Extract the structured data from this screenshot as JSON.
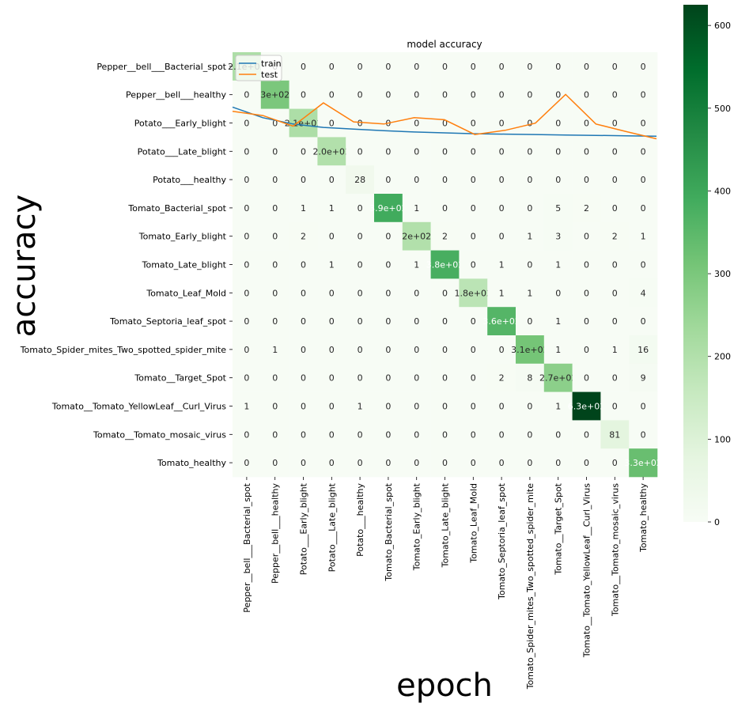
{
  "chart_data": [
    {
      "type": "heatmap",
      "title": "",
      "xlabel": "",
      "ylabel": "",
      "categories": [
        "Pepper__bell___Bacterial_spot",
        "Pepper__bell___healthy",
        "Potato___Early_blight",
        "Potato___Late_blight",
        "Potato___healthy",
        "Tomato_Bacterial_spot",
        "Tomato_Early_blight",
        "Tomato_Late_blight",
        "Tomato_Leaf_Mold",
        "Tomato_Septoria_leaf_spot",
        "Tomato_Spider_mites_Two_spotted_spider_mite",
        "Tomato__Target_Spot",
        "Tomato__Tomato_YellowLeaf__Curl_Virus",
        "Tomato__Tomato_mosaic_virus",
        "Tomato_healthy"
      ],
      "values": [
        [
          210,
          0,
          0,
          0,
          0,
          0,
          0,
          0,
          0,
          0,
          0,
          0,
          0,
          0,
          0
        ],
        [
          0,
          300,
          0,
          0,
          0,
          0,
          0,
          0,
          0,
          0,
          0,
          0,
          0,
          0,
          0
        ],
        [
          0,
          0,
          210,
          0,
          0,
          0,
          0,
          0,
          0,
          0,
          0,
          0,
          0,
          0,
          0
        ],
        [
          0,
          0,
          0,
          200,
          0,
          0,
          0,
          0,
          0,
          0,
          0,
          0,
          0,
          0,
          0
        ],
        [
          0,
          0,
          0,
          0,
          28,
          0,
          0,
          0,
          0,
          0,
          0,
          0,
          0,
          0,
          0
        ],
        [
          0,
          0,
          1,
          1,
          0,
          390,
          1,
          0,
          0,
          0,
          0,
          5,
          2,
          0,
          0
        ],
        [
          0,
          0,
          2,
          0,
          0,
          0,
          200,
          2,
          0,
          0,
          1,
          3,
          0,
          2,
          1
        ],
        [
          0,
          0,
          0,
          1,
          0,
          0,
          1,
          380,
          0,
          1,
          0,
          1,
          0,
          0,
          0
        ],
        [
          0,
          0,
          0,
          0,
          0,
          0,
          0,
          0,
          180,
          1,
          1,
          0,
          0,
          0,
          4
        ],
        [
          0,
          0,
          0,
          0,
          0,
          0,
          0,
          0,
          0,
          360,
          0,
          1,
          0,
          0,
          0
        ],
        [
          0,
          1,
          0,
          0,
          0,
          0,
          0,
          0,
          0,
          0,
          310,
          1,
          0,
          1,
          16
        ],
        [
          0,
          0,
          0,
          0,
          0,
          0,
          0,
          0,
          0,
          2,
          8,
          270,
          0,
          0,
          9
        ],
        [
          1,
          0,
          0,
          0,
          1,
          0,
          0,
          0,
          0,
          0,
          0,
          1,
          630,
          0,
          0
        ],
        [
          0,
          0,
          0,
          0,
          0,
          0,
          0,
          0,
          0,
          0,
          0,
          0,
          0,
          81,
          0
        ],
        [
          0,
          0,
          0,
          0,
          0,
          0,
          0,
          0,
          0,
          0,
          0,
          0,
          0,
          0,
          330
        ]
      ],
      "cell_labels": [
        [
          "2.1e+02",
          "0",
          "0",
          "0",
          "0",
          "0",
          "0",
          "0",
          "0",
          "0",
          "0",
          "0",
          "0",
          "0",
          "0"
        ],
        [
          "0",
          "3e+02",
          "0",
          "0",
          "0",
          "0",
          "0",
          "0",
          "0",
          "0",
          "0",
          "0",
          "0",
          "0",
          "0"
        ],
        [
          "0",
          "0",
          "2.1e+02",
          "0",
          "0",
          "0",
          "0",
          "0",
          "0",
          "0",
          "0",
          "0",
          "0",
          "0",
          "0"
        ],
        [
          "0",
          "0",
          "0",
          "2.0e+02",
          "0",
          "0",
          "0",
          "0",
          "0",
          "0",
          "0",
          "0",
          "0",
          "0",
          "0"
        ],
        [
          "0",
          "0",
          "0",
          "0",
          "28",
          "0",
          "0",
          "0",
          "0",
          "0",
          "0",
          "0",
          "0",
          "0",
          "0"
        ],
        [
          "0",
          "0",
          "1",
          "1",
          "0",
          "3.9e+02",
          "1",
          "0",
          "0",
          "0",
          "0",
          "5",
          "2",
          "0",
          "0"
        ],
        [
          "0",
          "0",
          "2",
          "0",
          "0",
          "0",
          "2e+02",
          "2",
          "0",
          "0",
          "1",
          "3",
          "0",
          "2",
          "1"
        ],
        [
          "0",
          "0",
          "0",
          "1",
          "0",
          "0",
          "1",
          "3.8e+02",
          "0",
          "1",
          "0",
          "1",
          "0",
          "0",
          "0"
        ],
        [
          "0",
          "0",
          "0",
          "0",
          "0",
          "0",
          "0",
          "0",
          "1.8e+02",
          "1",
          "1",
          "0",
          "0",
          "0",
          "4"
        ],
        [
          "0",
          "0",
          "0",
          "0",
          "0",
          "0",
          "0",
          "0",
          "0",
          "3.6e+02",
          "0",
          "1",
          "0",
          "0",
          "0"
        ],
        [
          "0",
          "1",
          "0",
          "0",
          "0",
          "0",
          "0",
          "0",
          "0",
          "0",
          "3.1e+02",
          "1",
          "0",
          "1",
          "16"
        ],
        [
          "0",
          "0",
          "0",
          "0",
          "0",
          "0",
          "0",
          "0",
          "0",
          "2",
          "8",
          "2.7e+02",
          "0",
          "0",
          "9"
        ],
        [
          "1",
          "0",
          "0",
          "0",
          "1",
          "0",
          "0",
          "0",
          "0",
          "0",
          "0",
          "1",
          "6.3e+02",
          "0",
          "0"
        ],
        [
          "0",
          "0",
          "0",
          "0",
          "0",
          "0",
          "0",
          "0",
          "0",
          "0",
          "0",
          "0",
          "0",
          "81",
          "0"
        ],
        [
          "0",
          "0",
          "0",
          "0",
          "0",
          "0",
          "0",
          "0",
          "0",
          "0",
          "0",
          "0",
          "0",
          "0",
          "3.3e+02"
        ]
      ],
      "colormap": "Greens",
      "colorbar": {
        "range": [
          0,
          625
        ],
        "ticks": [
          0,
          100,
          200,
          300,
          400,
          500,
          600
        ]
      }
    },
    {
      "type": "line",
      "title": "model accuracy",
      "xlabel": "epoch",
      "ylabel": "accuracy",
      "x": [
        0,
        1,
        2,
        3,
        4,
        5,
        6,
        7,
        8,
        9,
        10,
        11,
        12,
        13,
        14
      ],
      "ylim": [
        0.0,
        1.0
      ],
      "grid": false,
      "legend_position": "top-left",
      "series": [
        {
          "name": "train",
          "color": "#1f77b4",
          "values": [
            0.87,
            0.845,
            0.83,
            0.822,
            0.818,
            0.814,
            0.811,
            0.809,
            0.807,
            0.806,
            0.805,
            0.804,
            0.803,
            0.802,
            0.801
          ]
        },
        {
          "name": "test",
          "color": "#ff7f0e",
          "values": [
            0.86,
            0.85,
            0.825,
            0.88,
            0.835,
            0.83,
            0.845,
            0.84,
            0.805,
            0.815,
            0.832,
            0.9,
            0.83,
            0.812,
            0.795
          ]
        }
      ]
    }
  ]
}
